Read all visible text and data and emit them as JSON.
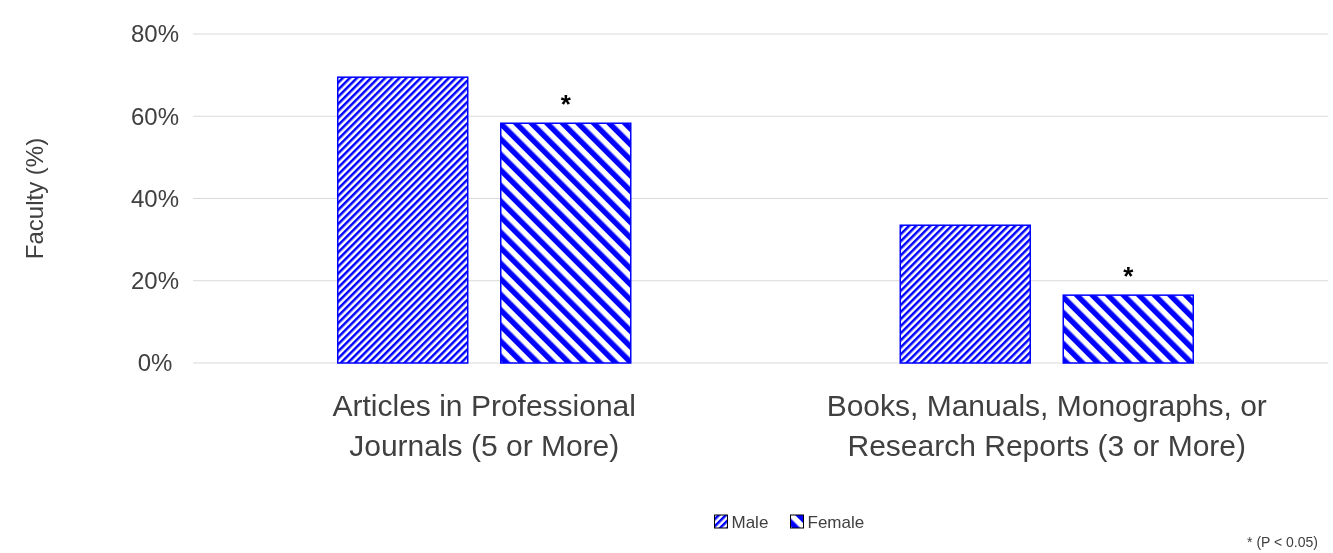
{
  "chart_data": {
    "type": "bar",
    "ylabel": "Faculty (%)",
    "categories": [
      "Articles in Professional Journals (5 or More)",
      "Books, Manuals, Monographs, or Research Reports (3 or More)"
    ],
    "series": [
      {
        "name": "Male",
        "color": "#0000ff",
        "values": [
          69.5,
          33.5
        ]
      },
      {
        "name": "Female",
        "color": "#0000ff",
        "values": [
          58.3,
          16.5
        ]
      }
    ],
    "ylim": [
      0,
      80
    ],
    "yticks": [
      {
        "value": 0,
        "label": "0%"
      },
      {
        "value": 20,
        "label": "20%"
      },
      {
        "value": 40,
        "label": "40%"
      },
      {
        "value": 60,
        "label": "60%"
      },
      {
        "value": 80,
        "label": "80%"
      }
    ],
    "grid": "y",
    "legend": "bottom",
    "annotations": [
      "*",
      "*",
      "* (P < 0.05)"
    ]
  }
}
